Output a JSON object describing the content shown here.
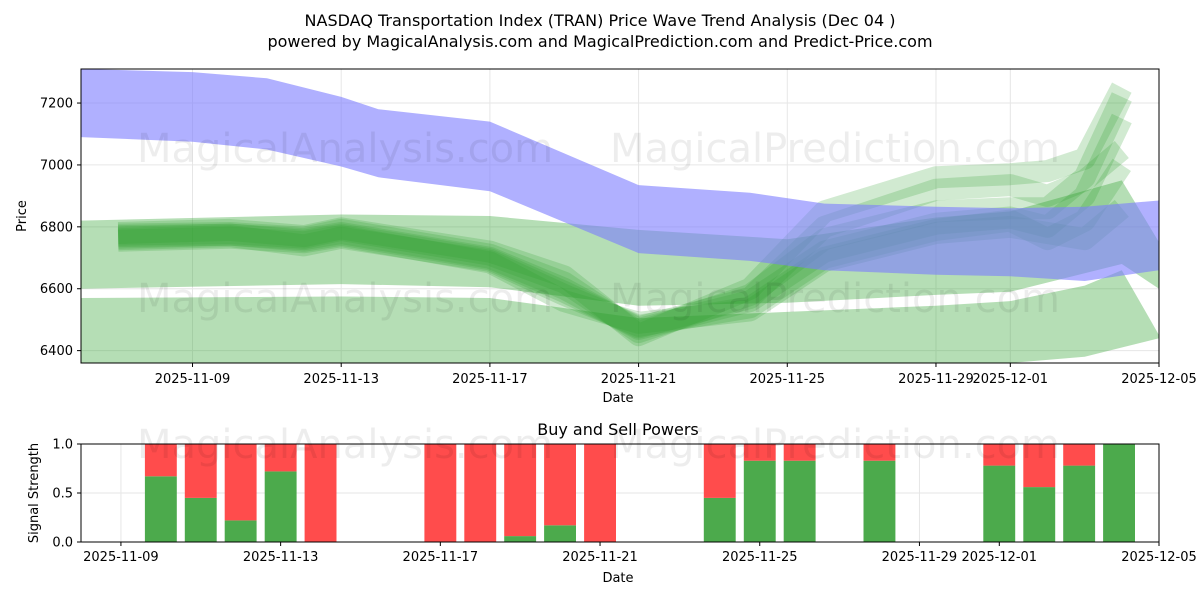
{
  "title_line1": "NASDAQ Transportation Index (TRAN) Price Wave Trend Analysis (Dec 04 )",
  "title_line2": "powered by MagicalAnalysis.com and MagicalPrediction.com and Predict-Price.com",
  "watermark_1": "MagicalAnalysis.com",
  "watermark_2": "MagicalPrediction.com",
  "colors": {
    "blue_band": "#7b7bff",
    "green_band": "#2ca02c",
    "buy": "#4caa4c",
    "sell": "#ff4c4c"
  },
  "chart_data": [
    {
      "type": "area",
      "title": "",
      "xlabel": "Date",
      "ylabel": "Price",
      "ylim": [
        6360,
        7310
      ],
      "x_range": [
        "2025-11-06",
        "2025-12-05"
      ],
      "xticks": [
        "2025-11-09",
        "2025-11-13",
        "2025-11-17",
        "2025-11-21",
        "2025-11-25",
        "2025-11-29",
        "2025-12-01",
        "2025-12-05"
      ],
      "yticks": [
        6400,
        6600,
        6800,
        7000,
        7200
      ],
      "grid": true,
      "bands": [
        {
          "name": "blue_wave",
          "color": "#7b7bff",
          "opacity": 0.6,
          "x": [
            "2025-11-06",
            "2025-11-09",
            "2025-11-11",
            "2025-11-13",
            "2025-11-14",
            "2025-11-17",
            "2025-11-21",
            "2025-11-24",
            "2025-11-26",
            "2025-11-29",
            "2025-12-01",
            "2025-12-03",
            "2025-12-05"
          ],
          "upper": [
            7310,
            7300,
            7280,
            7220,
            7180,
            7140,
            6935,
            6910,
            6875,
            6865,
            6860,
            6865,
            6885
          ],
          "lower": [
            7090,
            7075,
            7050,
            6995,
            6960,
            6915,
            6715,
            6690,
            6660,
            6645,
            6640,
            6625,
            6660
          ]
        },
        {
          "name": "green_wide_upper",
          "color": "#2ca02c",
          "opacity": 0.35,
          "x": [
            "2025-11-06",
            "2025-11-13",
            "2025-11-17",
            "2025-11-21",
            "2025-11-25",
            "2025-11-29",
            "2025-12-01",
            "2025-12-04",
            "2025-12-05"
          ],
          "upper": [
            6820,
            6840,
            6835,
            6790,
            6760,
            6830,
            6850,
            6950,
            6750
          ],
          "lower": [
            6600,
            6615,
            6605,
            6545,
            6555,
            6580,
            6590,
            6680,
            6600
          ]
        },
        {
          "name": "green_wide_lower",
          "color": "#2ca02c",
          "opacity": 0.35,
          "x": [
            "2025-11-06",
            "2025-11-13",
            "2025-11-17",
            "2025-11-21",
            "2025-11-25",
            "2025-11-29",
            "2025-12-01",
            "2025-12-03",
            "2025-12-04",
            "2025-12-05"
          ],
          "upper": [
            6570,
            6575,
            6570,
            6505,
            6525,
            6545,
            6560,
            6610,
            6660,
            6450
          ],
          "lower": [
            6360,
            6360,
            6360,
            6360,
            6360,
            6360,
            6360,
            6380,
            6410,
            6440
          ]
        }
      ],
      "green_paths": [
        {
          "x": [
            "2025-11-07",
            "2025-11-10",
            "2025-11-12",
            "2025-11-13",
            "2025-11-17",
            "2025-11-19",
            "2025-11-21",
            "2025-11-24",
            "2025-11-26",
            "2025-11-29",
            "2025-12-01",
            "2025-12-02",
            "2025-12-03",
            "2025-12-04"
          ],
          "y": [
            6770,
            6775,
            6760,
            6780,
            6700,
            6600,
            6470,
            6560,
            6720,
            6810,
            6830,
            6800,
            6900,
            7150
          ]
        },
        {
          "x": [
            "2025-11-07",
            "2025-11-10",
            "2025-11-12",
            "2025-11-13",
            "2025-11-17",
            "2025-11-19",
            "2025-11-21",
            "2025-11-24",
            "2025-11-26",
            "2025-11-29",
            "2025-12-01",
            "2025-12-02",
            "2025-12-03",
            "2025-12-04"
          ],
          "y": [
            6760,
            6770,
            6740,
            6765,
            6690,
            6580,
            6480,
            6540,
            6700,
            6790,
            6820,
            6760,
            6820,
            7000
          ]
        },
        {
          "x": [
            "2025-11-07",
            "2025-11-10",
            "2025-11-12",
            "2025-11-13",
            "2025-11-17",
            "2025-11-19",
            "2025-11-21",
            "2025-11-24",
            "2025-11-26",
            "2025-11-29",
            "2025-12-01",
            "2025-12-02",
            "2025-12-03",
            "2025-12-04"
          ],
          "y": [
            6775,
            6780,
            6765,
            6790,
            6710,
            6620,
            6460,
            6580,
            6760,
            6850,
            6860,
            6860,
            6960,
            7220
          ]
        },
        {
          "x": [
            "2025-11-07",
            "2025-11-10",
            "2025-11-12",
            "2025-11-13",
            "2025-11-17",
            "2025-11-19",
            "2025-11-21",
            "2025-11-24",
            "2025-11-26",
            "2025-11-29",
            "2025-12-01",
            "2025-12-02",
            "2025-12-03",
            "2025-12-04"
          ],
          "y": [
            6755,
            6765,
            6750,
            6770,
            6685,
            6560,
            6490,
            6530,
            6690,
            6780,
            6800,
            6780,
            6760,
            6860
          ]
        },
        {
          "x": [
            "2025-11-07",
            "2025-11-10",
            "2025-11-12",
            "2025-11-13",
            "2025-11-17",
            "2025-11-19",
            "2025-11-21",
            "2025-11-24",
            "2025-11-26",
            "2025-11-29",
            "2025-12-01",
            "2025-12-02",
            "2025-12-03",
            "2025-12-04"
          ],
          "y": [
            6780,
            6790,
            6770,
            6795,
            6720,
            6640,
            6450,
            6600,
            6850,
            6960,
            6970,
            6980,
            7020,
            7250
          ]
        },
        {
          "x": [
            "2025-11-07",
            "2025-11-10",
            "2025-11-12",
            "2025-11-13",
            "2025-11-17",
            "2025-11-19",
            "2025-11-21",
            "2025-11-24",
            "2025-11-26",
            "2025-11-29",
            "2025-12-01",
            "2025-12-02",
            "2025-12-03",
            "2025-12-04"
          ],
          "y": [
            6765,
            6775,
            6755,
            6775,
            6695,
            6590,
            6475,
            6570,
            6800,
            6920,
            6935,
            6900,
            6950,
            7050
          ]
        }
      ]
    },
    {
      "type": "bar",
      "title": "Buy and Sell Powers",
      "xlabel": "Date",
      "ylabel": "Signal Strength",
      "ylim": [
        0,
        1.0
      ],
      "yticks": [
        "0.0",
        "0.5",
        "1.0"
      ],
      "x_range": [
        "2025-11-08",
        "2025-12-05"
      ],
      "xticks": [
        "2025-11-09",
        "2025-11-13",
        "2025-11-17",
        "2025-11-21",
        "2025-11-25",
        "2025-11-29",
        "2025-12-01",
        "2025-12-05"
      ],
      "grid": true,
      "dates": [
        "2025-11-10",
        "2025-11-11",
        "2025-11-12",
        "2025-11-13",
        "2025-11-14",
        "2025-11-17",
        "2025-11-18",
        "2025-11-19",
        "2025-11-20",
        "2025-11-21",
        "2025-11-24",
        "2025-11-25",
        "2025-11-26",
        "2025-11-28",
        "2025-12-01",
        "2025-12-02",
        "2025-12-03",
        "2025-12-04"
      ],
      "series": [
        {
          "name": "Buy",
          "color": "#4caa4c",
          "values": [
            0.67,
            0.45,
            0.22,
            0.72,
            0.0,
            0.0,
            0.0,
            0.06,
            0.17,
            0.0,
            0.45,
            0.83,
            0.83,
            0.83,
            0.78,
            0.56,
            0.78,
            1.0
          ]
        },
        {
          "name": "Sell",
          "color": "#ff4c4c",
          "values": [
            0.33,
            0.55,
            0.78,
            0.28,
            1.0,
            1.0,
            1.0,
            0.94,
            0.83,
            1.0,
            0.55,
            0.17,
            0.17,
            0.17,
            0.22,
            0.44,
            0.22,
            0.0
          ]
        }
      ]
    }
  ]
}
